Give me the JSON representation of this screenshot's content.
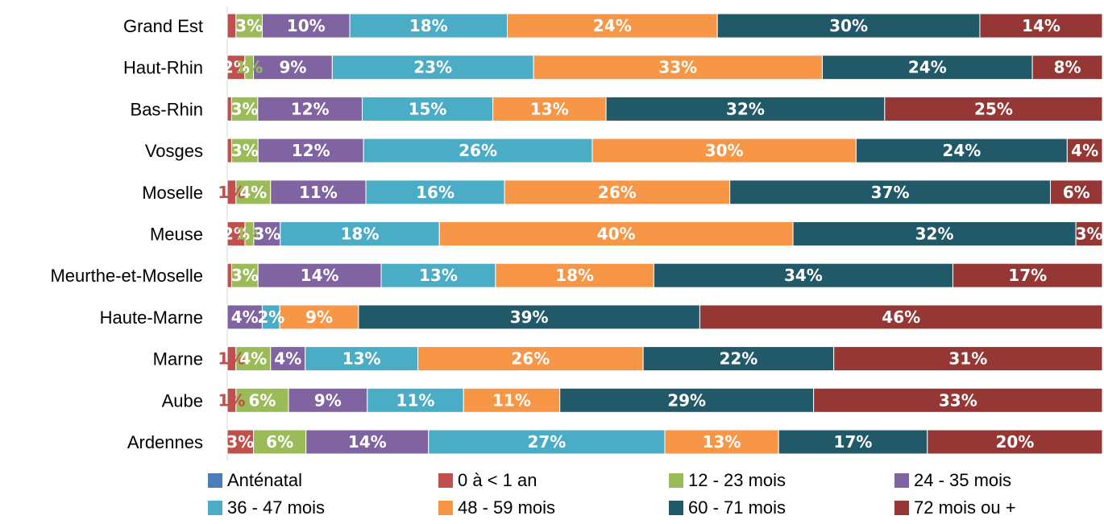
{
  "chart_data": {
    "type": "bar",
    "orientation": "horizontal",
    "stacked": "percent",
    "categories": [
      "Grand Est",
      "Haut-Rhin",
      "Bas-Rhin",
      "Vosges",
      "Moselle",
      "Meuse",
      "Meurthe-et-Moselle",
      "Haute-Marne",
      "Marne",
      "Aube",
      "Ardennes"
    ],
    "series": [
      {
        "name": "Anténatal",
        "color": "#4a7ebb",
        "values": [
          0,
          0,
          0,
          0,
          0,
          0,
          0,
          0,
          0,
          0,
          0
        ],
        "labels": [
          "",
          "",
          "",
          "",
          "",
          "",
          "",
          "",
          "",
          "",
          ""
        ]
      },
      {
        "name": "0 à < 1 an",
        "color": "#c0504d",
        "values": [
          1,
          2,
          0.5,
          0.5,
          1,
          2,
          0.5,
          0,
          1,
          1,
          3
        ],
        "labels": [
          "",
          "2%",
          "",
          "",
          "1%",
          "2%",
          "",
          "",
          "1%",
          "1%",
          "3%"
        ]
      },
      {
        "name": "12 - 23 mois",
        "color": "#9bbb59",
        "values": [
          3,
          1,
          3,
          3,
          4,
          1,
          3,
          0,
          4,
          6,
          6
        ],
        "labels": [
          "3%",
          "1%",
          "3%",
          "3%",
          "4%",
          "1%",
          "3%",
          "",
          "4%",
          "6%",
          "6%"
        ]
      },
      {
        "name": "24 - 35 mois",
        "color": "#8064a2",
        "values": [
          10,
          9,
          12,
          12,
          11,
          3,
          14,
          4,
          4,
          9,
          14
        ],
        "labels": [
          "10%",
          "9%",
          "12%",
          "12%",
          "11%",
          "3%",
          "14%",
          "4%",
          "4%",
          "9%",
          "14%"
        ]
      },
      {
        "name": "36 - 47 mois",
        "color": "#4bacc6",
        "values": [
          18,
          23,
          15,
          26,
          16,
          18,
          13,
          2,
          13,
          11,
          27
        ],
        "labels": [
          "18%",
          "23%",
          "15%",
          "26%",
          "16%",
          "18%",
          "13%",
          "2%",
          "13%",
          "11%",
          "27%"
        ]
      },
      {
        "name": "48 - 59 mois",
        "color": "#f79646",
        "values": [
          24,
          33,
          13,
          30,
          26,
          40,
          18,
          9,
          26,
          11,
          13
        ],
        "labels": [
          "24%",
          "33%",
          "13%",
          "30%",
          "26%",
          "40%",
          "18%",
          "9%",
          "26%",
          "11%",
          "13%"
        ]
      },
      {
        "name": "60 - 71 mois",
        "color": "#215968",
        "values": [
          30,
          24,
          32,
          24,
          37,
          32,
          34,
          39,
          22,
          29,
          17
        ],
        "labels": [
          "30%",
          "24%",
          "32%",
          "24%",
          "37%",
          "32%",
          "34%",
          "39%",
          "22%",
          "29%",
          "17%"
        ]
      },
      {
        "name": "72 mois ou +",
        "color": "#953735",
        "values": [
          14,
          8,
          25,
          4,
          6,
          3,
          17,
          46,
          31,
          33,
          20
        ],
        "labels": [
          "14%",
          "8%",
          "25%",
          "4%",
          "6%",
          "3%",
          "17%",
          "46%",
          "31%",
          "33%",
          "20%"
        ]
      }
    ],
    "xlim": [
      0,
      100
    ],
    "grid": false,
    "legend_position": "bottom"
  }
}
